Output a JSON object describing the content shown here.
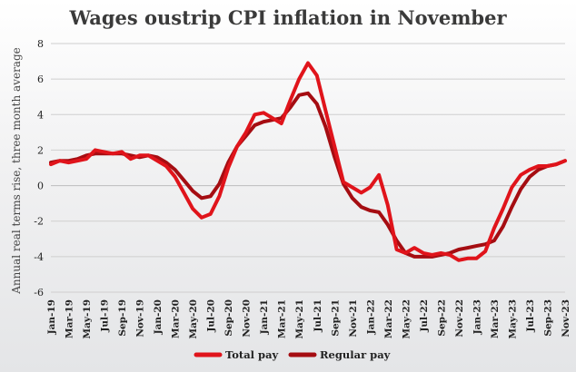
{
  "chart_data": {
    "type": "line",
    "title": "Wages oustrip CPI inflation in November",
    "ylabel": "Annual real terms rise, three month average",
    "xlabel": "",
    "ylim": [
      -6,
      8
    ],
    "yticks": [
      8,
      6,
      4,
      2,
      0,
      -2,
      -4,
      -6
    ],
    "grid": true,
    "legend": "bottom-center",
    "x": [
      "Jan-19",
      "Feb-19",
      "Mar-19",
      "Apr-19",
      "May-19",
      "Jun-19",
      "Jul-19",
      "Aug-19",
      "Sep-19",
      "Oct-19",
      "Nov-19",
      "Dec-19",
      "Jan-20",
      "Feb-20",
      "Mar-20",
      "Apr-20",
      "May-20",
      "Jun-20",
      "Jul-20",
      "Aug-20",
      "Sep-20",
      "Oct-20",
      "Nov-20",
      "Dec-20",
      "Jan-21",
      "Feb-21",
      "Mar-21",
      "Apr-21",
      "May-21",
      "Jun-21",
      "Jul-21",
      "Aug-21",
      "Sep-21",
      "Oct-21",
      "Nov-21",
      "Dec-21",
      "Jan-22",
      "Feb-22",
      "Mar-22",
      "Apr-22",
      "May-22",
      "Jun-22",
      "Jul-22",
      "Aug-22",
      "Sep-22",
      "Oct-22",
      "Nov-22",
      "Dec-22",
      "Jan-23",
      "Feb-23",
      "Mar-23",
      "Apr-23",
      "May-23",
      "Jun-23",
      "Jul-23",
      "Aug-23",
      "Sep-23",
      "Oct-23",
      "Nov-23"
    ],
    "xtick_labels": [
      "Jan-19",
      "Mar-19",
      "May-19",
      "Jul-19",
      "Sep-19",
      "Nov-19",
      "Jan-20",
      "Mar-20",
      "May-20",
      "Jul-20",
      "Sep-20",
      "Nov-20",
      "Jan-21",
      "Mar-21",
      "May-21",
      "Jul-21",
      "Sep-21",
      "Nov-21",
      "Jan-22",
      "Mar-22",
      "May-22",
      "Jul-22",
      "Sep-22",
      "Nov-22",
      "Jan-23",
      "Mar-23",
      "May-23",
      "Jul-23",
      "Sep-23",
      "Nov-23"
    ],
    "series": [
      {
        "name": "Total pay",
        "color": "#e0141b",
        "values": [
          1.2,
          1.4,
          1.3,
          1.4,
          1.5,
          2.0,
          1.9,
          1.8,
          1.9,
          1.5,
          1.7,
          1.7,
          1.4,
          1.1,
          0.5,
          -0.4,
          -1.3,
          -1.8,
          -1.6,
          -0.6,
          1.0,
          2.2,
          3.0,
          4.0,
          4.1,
          3.8,
          3.5,
          4.8,
          6.0,
          6.9,
          6.2,
          4.2,
          2.2,
          0.2,
          -0.1,
          -0.4,
          -0.1,
          0.6,
          -1.1,
          -3.6,
          -3.8,
          -3.5,
          -3.8,
          -3.9,
          -3.8,
          -3.9,
          -4.2,
          -4.1,
          -4.1,
          -3.7,
          -2.4,
          -1.3,
          -0.1,
          0.6,
          0.9,
          1.1,
          1.1,
          1.2,
          1.4
        ]
      },
      {
        "name": "Regular pay",
        "color": "#a50d12",
        "values": [
          1.3,
          1.4,
          1.4,
          1.5,
          1.7,
          1.8,
          1.8,
          1.8,
          1.8,
          1.7,
          1.6,
          1.7,
          1.6,
          1.3,
          0.9,
          0.3,
          -0.3,
          -0.7,
          -0.6,
          0.1,
          1.3,
          2.2,
          2.8,
          3.4,
          3.6,
          3.7,
          3.8,
          4.4,
          5.1,
          5.2,
          4.6,
          3.3,
          1.6,
          0.1,
          -0.7,
          -1.2,
          -1.4,
          -1.5,
          -2.2,
          -3.1,
          -3.8,
          -4.0,
          -4.0,
          -4.0,
          -3.9,
          -3.8,
          -3.6,
          -3.5,
          -3.4,
          -3.3,
          -3.1,
          -2.3,
          -1.2,
          -0.2,
          0.5,
          0.9,
          1.1,
          1.2,
          1.4
        ]
      }
    ]
  },
  "colors": {
    "grid": "#cfcfcf",
    "zero_line": "#bdbdbd",
    "background_top": "#ffffff",
    "background_bottom": "#e6e7e9"
  }
}
